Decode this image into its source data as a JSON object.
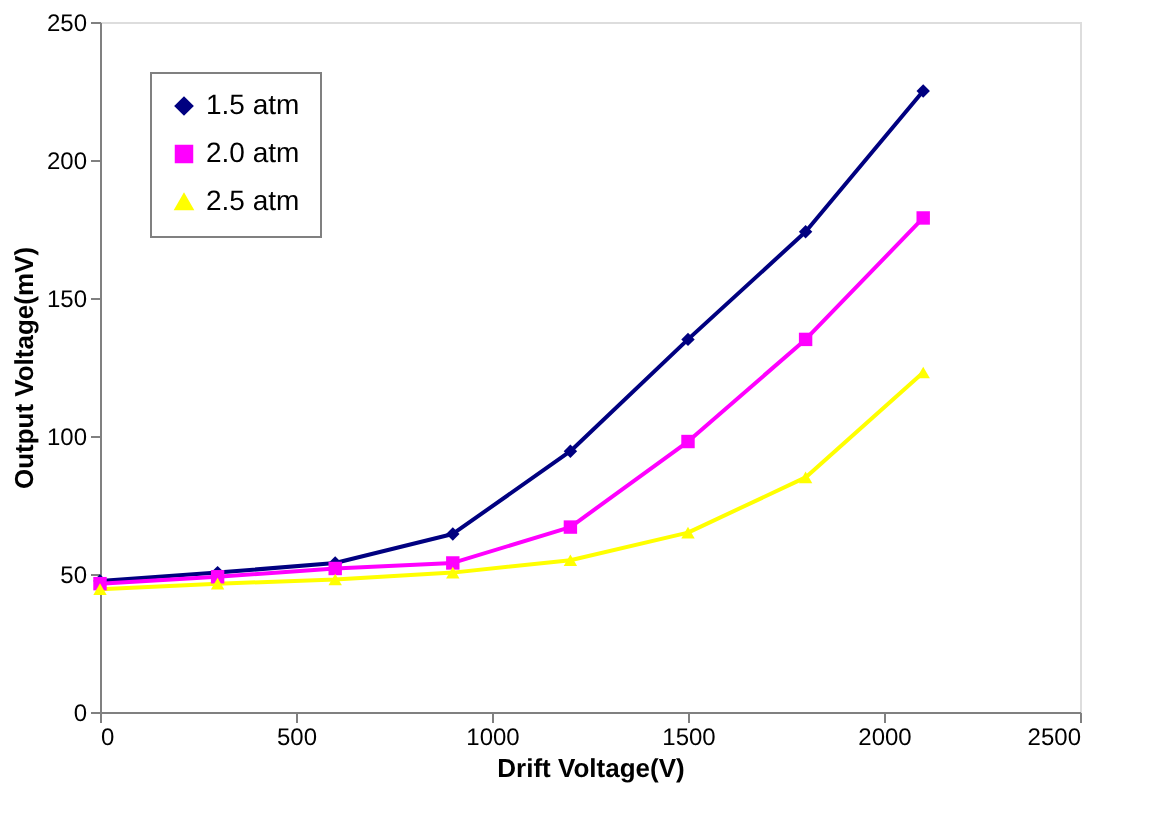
{
  "chart_data": {
    "type": "line",
    "xlabel": "Drift Voltage(V)",
    "ylabel": "Output Voltage(mV)",
    "x": [
      0,
      300,
      600,
      900,
      1200,
      1500,
      1800,
      2100
    ],
    "xlim": [
      0,
      2500
    ],
    "xticks": [
      0,
      500,
      1000,
      1500,
      2000,
      2500
    ],
    "ylim": [
      0,
      250
    ],
    "yticks": [
      0,
      50,
      100,
      150,
      200,
      250
    ],
    "grid": false,
    "legend": "top left",
    "line_style": "solid",
    "series": [
      {
        "name": "1.5 atm",
        "color": "#000080",
        "marker": "diamond",
        "values": [
          47.5,
          50.5,
          54,
          64.5,
          94.5,
          135,
          174,
          225
        ]
      },
      {
        "name": "2.0 atm",
        "color": "#ff00ff",
        "marker": "square",
        "values": [
          46.5,
          49,
          52,
          54,
          67,
          98,
          135,
          179
        ]
      },
      {
        "name": "2.5 atm",
        "color": "#ffff00",
        "marker": "triangle",
        "values": [
          44.5,
          46.5,
          48,
          50.5,
          55,
          65,
          85,
          123
        ]
      }
    ]
  }
}
